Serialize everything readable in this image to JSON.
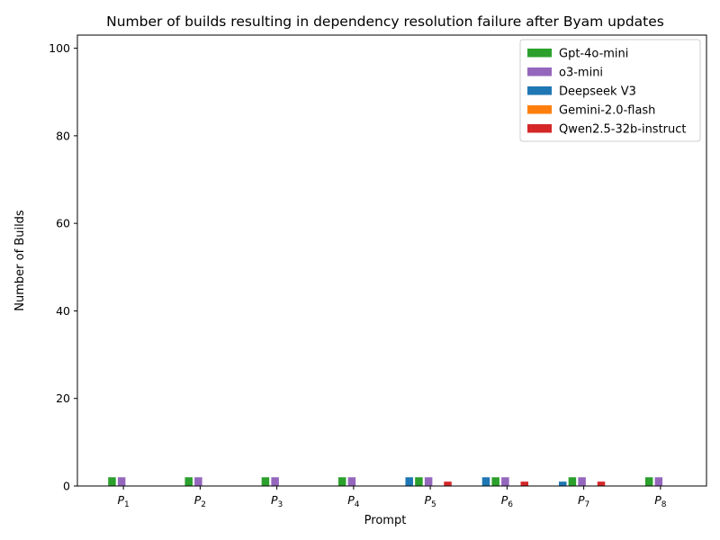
{
  "chart_data": {
    "type": "bar",
    "title": "Number of builds resulting in dependency resolution failure after Byam updates",
    "xlabel": "Prompt",
    "ylabel": "Number of Builds",
    "ylim": [
      0,
      103
    ],
    "yticks": [
      0,
      20,
      40,
      60,
      80,
      100
    ],
    "grid": false,
    "legend_position": "top-right",
    "categories": [
      {
        "base": "P",
        "sub": "1"
      },
      {
        "base": "P",
        "sub": "2"
      },
      {
        "base": "P",
        "sub": "3"
      },
      {
        "base": "P",
        "sub": "4"
      },
      {
        "base": "P",
        "sub": "5"
      },
      {
        "base": "P",
        "sub": "6"
      },
      {
        "base": "P",
        "sub": "7"
      },
      {
        "base": "P",
        "sub": "8"
      }
    ],
    "series": [
      {
        "name": "Deepseek V3",
        "color": "#1f77b4",
        "values": [
          0,
          0,
          0,
          0,
          2,
          2,
          1,
          0
        ]
      },
      {
        "name": "Gpt-4o-mini",
        "color": "#2ca02c",
        "values": [
          2,
          2,
          2,
          2,
          2,
          2,
          2,
          2
        ]
      },
      {
        "name": "o3-mini",
        "color": "#9467bd",
        "values": [
          2,
          2,
          2,
          2,
          2,
          2,
          2,
          2
        ]
      },
      {
        "name": "Gemini-2.0-flash",
        "color": "#ff7f0e",
        "values": [
          0,
          0,
          0,
          0,
          0,
          0,
          0,
          0
        ]
      },
      {
        "name": "Qwen2.5-32b-instruct",
        "color": "#d62728",
        "values": [
          0,
          0,
          0,
          0,
          1,
          1,
          1,
          0
        ]
      }
    ],
    "legend_order": [
      "Gpt-4o-mini",
      "o3-mini",
      "Deepseek V3",
      "Gemini-2.0-flash",
      "Qwen2.5-32b-instruct"
    ]
  }
}
